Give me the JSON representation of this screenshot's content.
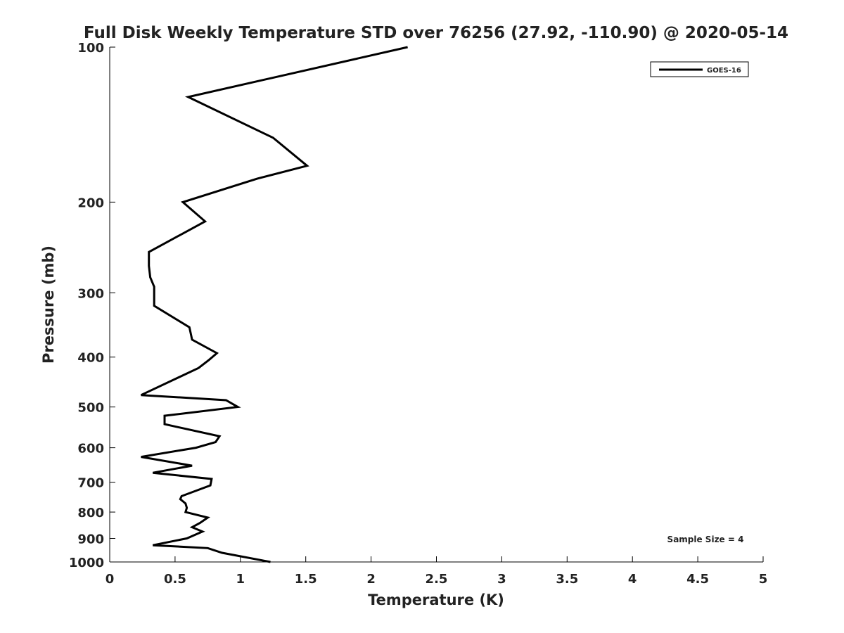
{
  "chart_data": {
    "type": "line",
    "title": "Full Disk Weekly Temperature STD over 76256 (27.92, -110.90) @ 2020-05-14",
    "xlabel": "Temperature (K)",
    "ylabel": "Pressure (mb)",
    "xlim": [
      0,
      5
    ],
    "ylim": [
      100,
      1000
    ],
    "yscale": "log",
    "y_reversed": true,
    "grid": false,
    "legend_position": "top-right",
    "x_ticks": [
      0,
      0.5,
      1,
      1.5,
      2,
      2.5,
      3,
      3.5,
      4,
      4.5,
      5
    ],
    "x_tick_labels": [
      "0",
      "0.5",
      "1",
      "1.5",
      "2",
      "2.5",
      "3",
      "3.5",
      "4",
      "4.5",
      "5"
    ],
    "y_ticks": [
      100,
      200,
      300,
      400,
      500,
      600,
      700,
      800,
      900,
      1000
    ],
    "y_tick_labels": [
      "100",
      "200",
      "300",
      "400",
      "500",
      "600",
      "700",
      "800",
      "900",
      "1000"
    ],
    "series": [
      {
        "name": "GOES-16",
        "color": "#000000",
        "x": [
          2.28,
          0.6,
          1.25,
          1.51,
          1.13,
          0.56,
          0.73,
          0.3,
          0.3,
          0.31,
          0.34,
          0.34,
          0.61,
          0.63,
          0.82,
          0.76,
          0.68,
          0.24,
          0.89,
          0.98,
          0.42,
          0.42,
          0.84,
          0.81,
          0.66,
          0.24,
          0.63,
          0.33,
          0.78,
          0.77,
          0.55,
          0.54,
          0.58,
          0.59,
          0.58,
          0.75,
          0.69,
          0.63,
          0.71,
          0.59,
          0.33,
          0.75,
          0.86,
          1.23
        ],
        "y": [
          100,
          125,
          150,
          170,
          180,
          200,
          218,
          250,
          266,
          280,
          292,
          318,
          350,
          370,
          393,
          405,
          420,
          474,
          485,
          500,
          520,
          540,
          570,
          585,
          600,
          625,
          650,
          671,
          690,
          710,
          745,
          755,
          770,
          785,
          800,
          820,
          840,
          856,
          873,
          900,
          928,
          940,
          960,
          1000
        ]
      }
    ],
    "annotation": "Sample Size = 4"
  }
}
